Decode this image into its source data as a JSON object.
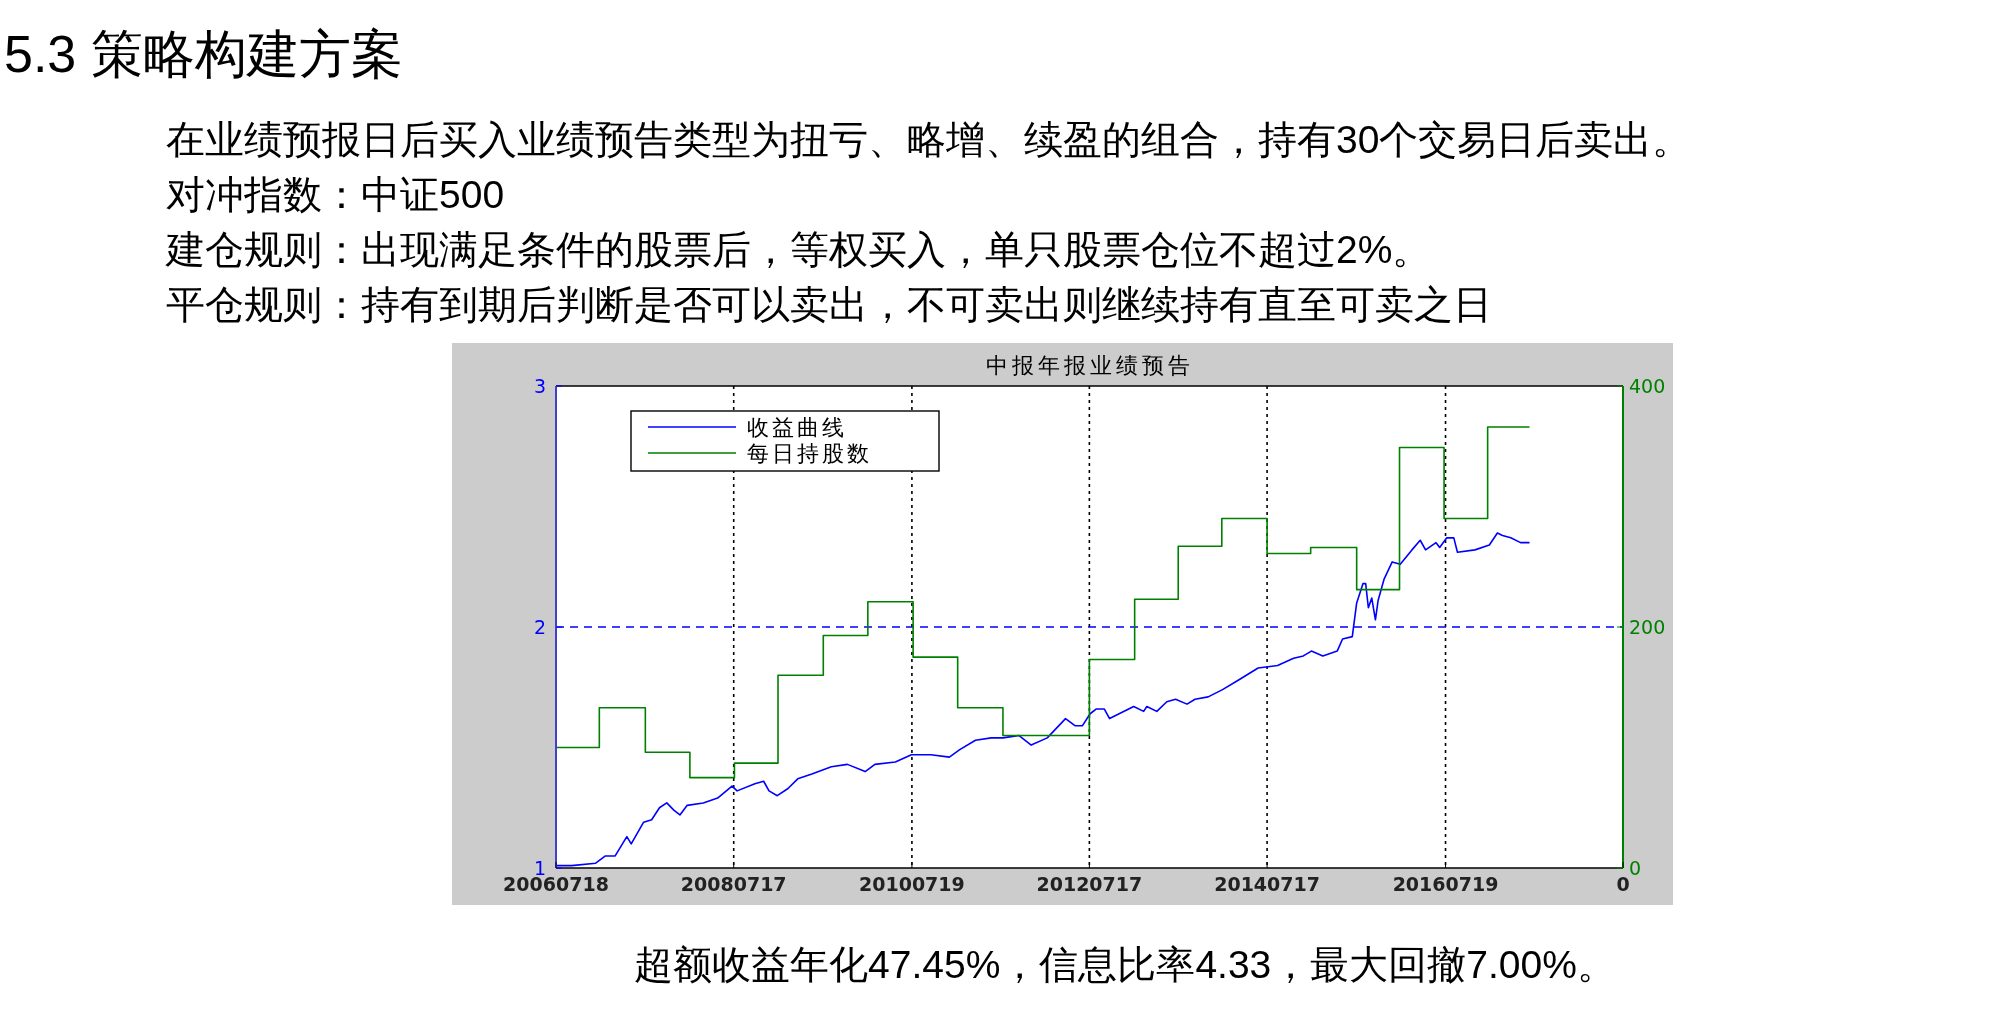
{
  "chart_data": {
    "type": "line",
    "title": "中报年报业绩预告",
    "annotations": [
      "5.3 策略构建方案",
      "在业绩预报日后买入业绩预告类型为扭亏、略增、续盈的组合，持有30个交易日后卖出。",
      "对冲指数：中证500",
      "建仓规则：出现满足条件的股票后，等权买入，单只股票仓位不超过2%。",
      "平仓规则：持有到期后判断是否可以卖出，不可卖出则继续持有直至可卖之日",
      "超额收益年化47.45%，信息比率4.33，最大回撤7.00%。"
    ],
    "xlim": [
      "2006-07-18",
      "2018-07-18"
    ],
    "xticks": [
      {
        "value": "2006-07-18",
        "label": "20060718"
      },
      {
        "value": "2008-07-17",
        "label": "20080717"
      },
      {
        "value": "2010-07-19",
        "label": "20100719"
      },
      {
        "value": "2012-07-17",
        "label": "20120717"
      },
      {
        "value": "2014-07-17",
        "label": "20140717"
      },
      {
        "value": "2016-07-19",
        "label": "20160719"
      },
      {
        "value": "2018-07-18",
        "label": "0"
      }
    ],
    "ylim": [
      1,
      3
    ],
    "yticks": [
      1,
      2,
      3
    ],
    "y2lim": [
      0,
      400
    ],
    "y2ticks": [
      0,
      200,
      400
    ],
    "grid": "x",
    "legend": "top left",
    "ref_lines": [
      {
        "axis": "y",
        "value": 2,
        "color": "#0000ff",
        "line_style": "dashed"
      }
    ],
    "series": [
      {
        "name": "收益曲线",
        "color": "#0000ff",
        "x": [
          "2006-07-18",
          "2006-09-20",
          "2006-12-28",
          "2007-02-06",
          "2007-03-18",
          "2007-05-05",
          "2007-05-23",
          "2007-07-13",
          "2007-08-15",
          "2007-09-16",
          "2007-10-16",
          "2007-11-14",
          "2007-12-09",
          "2008-01-08",
          "2008-03-14",
          "2008-05-12",
          "2008-07-10",
          "2008-07-31",
          "2008-10-12",
          "2008-11-17",
          "2008-12-09",
          "2009-01-12",
          "2009-02-25",
          "2009-04-06",
          "2009-06-03",
          "2009-08-22",
          "2009-10-27",
          "2010-01-08",
          "2010-02-17",
          "2010-05-12",
          "2010-07-17",
          "2010-10-05",
          "2010-12-20",
          "2011-01-30",
          "2011-04-06",
          "2011-06-10",
          "2011-07-28",
          "2011-10-01",
          "2011-11-21",
          "2012-01-26",
          "2012-04-10",
          "2012-05-20",
          "2012-06-18",
          "2012-07-20",
          "2012-08-15",
          "2012-09-16",
          "2012-10-08",
          "2013-01-15",
          "2013-02-25",
          "2013-03-10",
          "2013-04-20",
          "2013-05-31",
          "2013-07-06",
          "2013-08-22",
          "2013-09-24",
          "2013-11-17",
          "2014-01-15",
          "2014-03-22",
          "2014-06-10",
          "2014-08-29",
          "2014-11-03",
          "2014-12-13",
          "2015-01-15",
          "2015-03-03",
          "2015-05-01",
          "2015-05-23",
          "2015-07-02",
          "2015-07-20",
          "2015-08-15",
          "2015-08-26",
          "2015-09-06",
          "2015-09-20",
          "2015-10-05",
          "2015-10-16",
          "2015-11-10",
          "2015-12-13",
          "2016-01-15",
          "2016-03-03",
          "2016-04-06",
          "2016-04-28",
          "2016-06-10",
          "2016-06-25",
          "2016-07-24",
          "2016-08-22",
          "2016-09-06",
          "2016-11-17",
          "2017-01-15",
          "2017-02-17",
          "2017-03-10",
          "2017-04-13",
          "2017-05-23",
          "2017-06-29"
        ],
        "values": [
          1.01,
          1.01,
          1.02,
          1.05,
          1.05,
          1.13,
          1.1,
          1.19,
          1.2,
          1.25,
          1.27,
          1.24,
          1.22,
          1.26,
          1.27,
          1.29,
          1.34,
          1.32,
          1.35,
          1.36,
          1.32,
          1.3,
          1.33,
          1.37,
          1.39,
          1.42,
          1.43,
          1.4,
          1.43,
          1.44,
          1.47,
          1.47,
          1.46,
          1.49,
          1.53,
          1.54,
          1.54,
          1.55,
          1.51,
          1.54,
          1.62,
          1.59,
          1.59,
          1.64,
          1.66,
          1.66,
          1.62,
          1.67,
          1.65,
          1.67,
          1.65,
          1.69,
          1.7,
          1.68,
          1.7,
          1.71,
          1.74,
          1.78,
          1.83,
          1.84,
          1.87,
          1.88,
          1.9,
          1.88,
          1.9,
          1.95,
          1.96,
          2.1,
          2.18,
          2.18,
          2.08,
          2.12,
          2.03,
          2.11,
          2.2,
          2.27,
          2.26,
          2.32,
          2.36,
          2.32,
          2.35,
          2.33,
          2.37,
          2.37,
          2.31,
          2.32,
          2.34,
          2.39,
          2.38,
          2.37,
          2.35,
          2.35
        ]
      },
      {
        "name": "每日持股数",
        "type": "step",
        "axis": "y2",
        "color": "#008000",
        "x": [
          "2006-07-18",
          "2007-01-12",
          "2007-07-20",
          "2008-01-19",
          "2008-07-20",
          "2009-01-15",
          "2009-07-20",
          "2010-01-19",
          "2010-07-24",
          "2011-01-23",
          "2011-07-28",
          "2012-07-17",
          "2013-01-19",
          "2013-07-17",
          "2014-01-12",
          "2014-07-17",
          "2015-01-12",
          "2015-07-20",
          "2016-01-12",
          "2016-07-13",
          "2017-01-08",
          "2017-06-29"
        ],
        "values": [
          100,
          133,
          96,
          75,
          87,
          160,
          193,
          221,
          175,
          133,
          110,
          173,
          223,
          267,
          290,
          261,
          266,
          231,
          349,
          290,
          366,
          366
        ]
      }
    ]
  }
}
